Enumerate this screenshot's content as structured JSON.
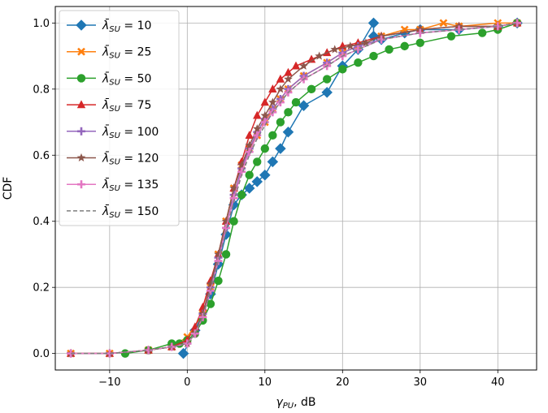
{
  "chart_data": {
    "type": "line",
    "title": "",
    "xlabel_sym": "γ",
    "xlabel_sub": "PU",
    "xlabel_unit": ", dB",
    "ylabel": "CDF",
    "xlim": [
      -17,
      45
    ],
    "ylim": [
      -0.05,
      1.05
    ],
    "xticks": [
      -10,
      0,
      10,
      20,
      30,
      40
    ],
    "xtick_labels": [
      "−10",
      "0",
      "10",
      "20",
      "30",
      "40"
    ],
    "yticks": [
      0.0,
      0.2,
      0.4,
      0.6,
      0.8,
      1.0
    ],
    "ytick_labels": [
      "0.0",
      "0.2",
      "0.4",
      "0.6",
      "0.8",
      "1.0"
    ],
    "grid": true,
    "legend_position": "top-left",
    "legend_symbol": "λ̄",
    "legend_sub": "SU",
    "series": [
      {
        "name": "10",
        "color": "#1f77b4",
        "marker": "diamond",
        "dashed": false,
        "x": [
          -0.5,
          1,
          3,
          4,
          5,
          6,
          7,
          8,
          9,
          10,
          11,
          12,
          13,
          15,
          18,
          20,
          22,
          24,
          24,
          25,
          28,
          30,
          35,
          40,
          42.5
        ],
        "y": [
          0.0,
          0.07,
          0.18,
          0.27,
          0.36,
          0.45,
          0.48,
          0.5,
          0.52,
          0.54,
          0.58,
          0.62,
          0.67,
          0.75,
          0.79,
          0.87,
          0.92,
          1.0,
          0.96,
          0.95,
          0.97,
          0.98,
          0.98,
          0.99,
          1.0
        ]
      },
      {
        "name": "25",
        "color": "#ff7f0e",
        "marker": "x",
        "dashed": false,
        "x": [
          -15,
          -10,
          -5,
          -2,
          0,
          2,
          3,
          4,
          5,
          6,
          7,
          8,
          9,
          10,
          11,
          12,
          13,
          15,
          18,
          20,
          22,
          25,
          28,
          30,
          33,
          35,
          40,
          42.5
        ],
        "y": [
          0.0,
          0.0,
          0.01,
          0.02,
          0.05,
          0.12,
          0.2,
          0.3,
          0.4,
          0.5,
          0.57,
          0.62,
          0.66,
          0.7,
          0.74,
          0.77,
          0.8,
          0.84,
          0.88,
          0.91,
          0.93,
          0.96,
          0.98,
          0.98,
          1.0,
          0.99,
          1.0,
          1.0
        ]
      },
      {
        "name": "50",
        "color": "#2ca02c",
        "marker": "circle",
        "dashed": false,
        "x": [
          -8,
          -5,
          -2,
          -1,
          0,
          1,
          2,
          3,
          4,
          5,
          6,
          7,
          8,
          9,
          10,
          11,
          12,
          13,
          14,
          16,
          18,
          20,
          22,
          24,
          26,
          28,
          30,
          34,
          38,
          40,
          42.5
        ],
        "y": [
          0.0,
          0.01,
          0.03,
          0.03,
          0.04,
          0.06,
          0.1,
          0.15,
          0.22,
          0.3,
          0.4,
          0.48,
          0.54,
          0.58,
          0.62,
          0.66,
          0.7,
          0.73,
          0.76,
          0.8,
          0.83,
          0.86,
          0.88,
          0.9,
          0.92,
          0.93,
          0.94,
          0.96,
          0.97,
          0.98,
          1.0
        ]
      },
      {
        "name": "75",
        "color": "#d62728",
        "marker": "triangle",
        "dashed": false,
        "x": [
          -15,
          -10,
          -5,
          -2,
          0,
          1,
          2,
          3,
          4,
          5,
          6,
          7,
          8,
          9,
          10,
          11,
          12,
          13,
          14,
          16,
          18,
          20,
          22,
          25,
          30,
          35,
          40,
          42.5
        ],
        "y": [
          0.0,
          0.0,
          0.01,
          0.02,
          0.04,
          0.08,
          0.14,
          0.22,
          0.3,
          0.4,
          0.5,
          0.58,
          0.66,
          0.72,
          0.76,
          0.8,
          0.83,
          0.85,
          0.87,
          0.89,
          0.91,
          0.93,
          0.94,
          0.96,
          0.98,
          0.99,
          0.99,
          1.0
        ]
      },
      {
        "name": "100",
        "color": "#9467bd",
        "marker": "plus",
        "dashed": false,
        "x": [
          -15,
          -10,
          -5,
          -2,
          0,
          1,
          2,
          3,
          4,
          5,
          6,
          7,
          8,
          9,
          10,
          11,
          12,
          13,
          15,
          18,
          20,
          22,
          25,
          30,
          35,
          40,
          42.5
        ],
        "y": [
          0.0,
          0.0,
          0.01,
          0.02,
          0.03,
          0.06,
          0.12,
          0.2,
          0.29,
          0.38,
          0.48,
          0.56,
          0.62,
          0.67,
          0.71,
          0.74,
          0.77,
          0.8,
          0.84,
          0.88,
          0.91,
          0.93,
          0.95,
          0.97,
          0.98,
          0.99,
          1.0
        ]
      },
      {
        "name": "120",
        "color": "#8c564b",
        "marker": "star",
        "dashed": false,
        "x": [
          -15,
          -10,
          -5,
          -2,
          0,
          1,
          2,
          3,
          4,
          5,
          6,
          7,
          8,
          9,
          10,
          11,
          12,
          13,
          15,
          17,
          19,
          21,
          23,
          25,
          30,
          35,
          40,
          42.5
        ],
        "y": [
          0.0,
          0.0,
          0.01,
          0.02,
          0.03,
          0.06,
          0.12,
          0.21,
          0.3,
          0.4,
          0.5,
          0.57,
          0.63,
          0.68,
          0.72,
          0.76,
          0.8,
          0.83,
          0.87,
          0.9,
          0.92,
          0.93,
          0.94,
          0.96,
          0.98,
          0.99,
          0.99,
          1.0
        ]
      },
      {
        "name": "135",
        "color": "#e377c2",
        "marker": "plus",
        "dashed": false,
        "x": [
          -15,
          -10,
          -5,
          -2,
          0,
          1,
          2,
          3,
          4,
          5,
          6,
          7,
          8,
          9,
          10,
          11,
          12,
          13,
          15,
          18,
          20,
          22,
          25,
          30,
          35,
          40,
          42.5
        ],
        "y": [
          0.0,
          0.0,
          0.01,
          0.02,
          0.03,
          0.06,
          0.11,
          0.19,
          0.28,
          0.38,
          0.47,
          0.55,
          0.61,
          0.66,
          0.7,
          0.73,
          0.76,
          0.79,
          0.83,
          0.87,
          0.9,
          0.92,
          0.95,
          0.97,
          0.98,
          0.99,
          1.0
        ]
      },
      {
        "name": "150",
        "color": "#7f7f7f",
        "marker": "none",
        "dashed": true,
        "x": [
          -15,
          -10,
          -5,
          -2,
          0,
          1,
          2,
          3,
          4,
          5,
          6,
          7,
          8,
          9,
          10,
          11,
          12,
          13,
          15,
          18,
          20,
          22,
          25,
          30,
          35,
          40,
          42.5
        ],
        "y": [
          0.0,
          0.0,
          0.01,
          0.02,
          0.03,
          0.06,
          0.11,
          0.19,
          0.28,
          0.37,
          0.46,
          0.54,
          0.6,
          0.65,
          0.69,
          0.73,
          0.76,
          0.79,
          0.83,
          0.87,
          0.9,
          0.92,
          0.95,
          0.97,
          0.98,
          0.99,
          1.0
        ]
      }
    ]
  }
}
